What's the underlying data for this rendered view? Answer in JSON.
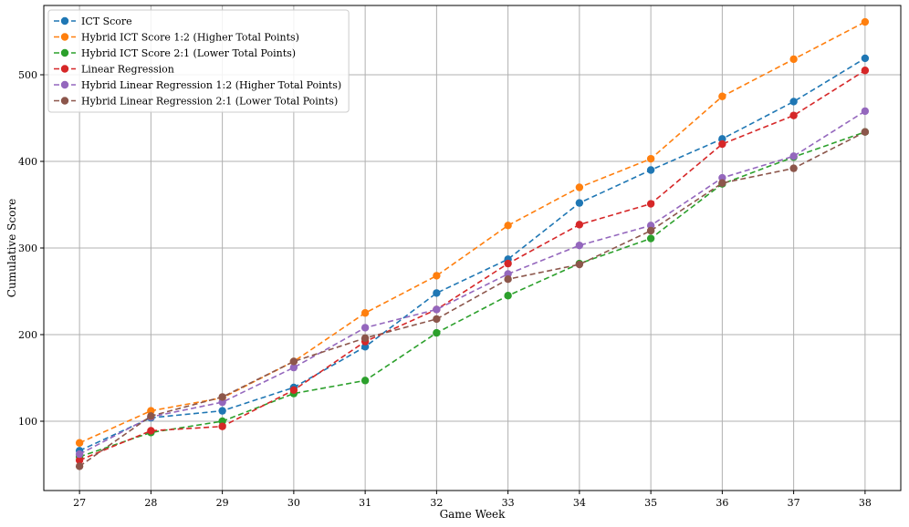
{
  "chart_data": {
    "type": "line",
    "xlabel": "Game Week",
    "ylabel": "Cumulative Score",
    "x": [
      27,
      28,
      29,
      30,
      31,
      32,
      33,
      34,
      35,
      36,
      37,
      38
    ],
    "xlim": [
      26.5,
      38.5
    ],
    "ylim": [
      20,
      580
    ],
    "yticks": [
      100,
      200,
      300,
      400,
      500
    ],
    "grid": true,
    "legend_position": "top-left",
    "series": [
      {
        "name": "ICT Score",
        "color": "#1f77b4",
        "values": [
          66,
          104,
          112,
          139,
          186,
          248,
          287,
          352,
          390,
          426,
          469,
          519
        ]
      },
      {
        "name": "Hybrid ICT Score 1:2 (Higher Total Points)",
        "color": "#ff7f0e",
        "values": [
          75,
          112,
          127,
          169,
          225,
          268,
          326,
          370,
          403,
          475,
          518,
          561
        ]
      },
      {
        "name": "Hybrid ICT Score 2:1 (Lower Total Points)",
        "color": "#2ca02c",
        "values": [
          59,
          87,
          100,
          132,
          147,
          202,
          245,
          282,
          311,
          374,
          405,
          434
        ]
      },
      {
        "name": "Linear Regression",
        "color": "#d62728",
        "values": [
          55,
          89,
          94,
          136,
          192,
          229,
          282,
          327,
          351,
          420,
          453,
          505
        ]
      },
      {
        "name": "Hybrid Linear Regression 1:2 (Higher Total Points)",
        "color": "#9467bd",
        "values": [
          62,
          105,
          122,
          162,
          208,
          229,
          270,
          303,
          326,
          381,
          406,
          458
        ]
      },
      {
        "name": "Hybrid Linear Regression 2:1 (Lower Total Points)",
        "color": "#8c564b",
        "values": [
          48,
          106,
          128,
          169,
          196,
          218,
          264,
          281,
          320,
          375,
          392,
          434
        ]
      }
    ]
  }
}
